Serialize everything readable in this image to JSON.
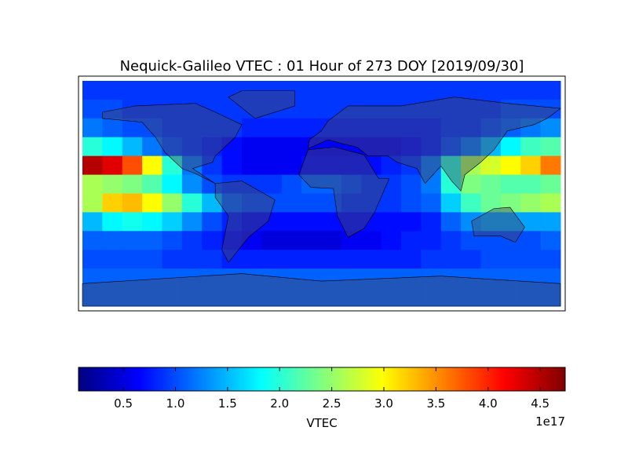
{
  "chart_data": {
    "type": "heatmap",
    "title": "Nequick-Galileo VTEC : 01 Hour of 273 DOY [2019/09/30]",
    "colormap": "jet",
    "clim": [
      0.07,
      4.74
    ],
    "colorbar_label": "VTEC",
    "colorbar_offset_label": "1e17",
    "colorbar_ticks": [
      0.5,
      {
        "value": 1,
        "label": "1.0"
      },
      1.5,
      {
        "value": 2,
        "label": "2.0"
      },
      2.5,
      {
        "value": 3,
        "label": "3.0"
      },
      3.5,
      {
        "value": 4,
        "label": "4.0"
      },
      4.5
    ],
    "z": [
      [
        0.9,
        0.9,
        0.9,
        0.9,
        0.9,
        0.9,
        0.9,
        0.9,
        0.9,
        0.9,
        0.9,
        0.9,
        0.9,
        0.9,
        0.9,
        0.9,
        0.9,
        0.9,
        0.9,
        0.9,
        0.9,
        0.9,
        0.9,
        0.9
      ],
      [
        1.0,
        1.0,
        0.9,
        0.9,
        0.9,
        0.9,
        0.9,
        0.9,
        0.9,
        0.9,
        0.9,
        0.9,
        0.9,
        0.9,
        0.9,
        0.9,
        0.9,
        0.9,
        0.9,
        0.9,
        0.9,
        1.0,
        1.0,
        1.0
      ],
      [
        1.2,
        1.1,
        1.0,
        1.0,
        0.9,
        0.9,
        0.9,
        0.9,
        0.8,
        0.8,
        0.8,
        0.8,
        0.8,
        0.8,
        0.8,
        0.8,
        0.8,
        0.8,
        0.9,
        0.9,
        1.0,
        1.1,
        1.2,
        1.3
      ],
      [
        2.0,
        1.8,
        1.5,
        1.2,
        1.0,
        0.9,
        0.8,
        0.7,
        0.6,
        0.6,
        0.6,
        0.6,
        0.6,
        0.6,
        0.6,
        0.6,
        0.7,
        0.8,
        1.0,
        1.2,
        1.5,
        1.8,
        2.1,
        2.2
      ],
      [
        4.5,
        4.3,
        3.8,
        3.0,
        2.0,
        1.2,
        0.9,
        0.7,
        0.6,
        0.6,
        0.6,
        0.7,
        0.7,
        0.7,
        0.7,
        0.8,
        0.9,
        1.2,
        2.0,
        2.6,
        2.8,
        3.0,
        3.2,
        3.6
      ],
      [
        2.6,
        2.5,
        2.4,
        2.2,
        1.8,
        1.3,
        1.0,
        0.9,
        0.9,
        0.9,
        1.0,
        1.1,
        1.1,
        1.0,
        0.9,
        0.9,
        1.0,
        1.2,
        2.0,
        2.4,
        2.3,
        2.2,
        2.2,
        2.3
      ],
      [
        2.6,
        3.2,
        3.3,
        3.0,
        2.5,
        2.0,
        1.5,
        1.1,
        1.0,
        1.0,
        1.0,
        1.0,
        1.0,
        0.9,
        0.9,
        0.9,
        1.0,
        1.1,
        1.6,
        2.1,
        2.3,
        2.4,
        2.5,
        2.6
      ],
      [
        1.5,
        1.8,
        1.9,
        1.8,
        1.6,
        1.3,
        1.0,
        0.8,
        0.7,
        0.7,
        0.7,
        0.7,
        0.7,
        0.7,
        0.7,
        0.7,
        0.7,
        0.8,
        1.1,
        1.3,
        1.4,
        1.4,
        1.4,
        1.4
      ],
      [
        1.1,
        1.1,
        1.1,
        1.1,
        1.0,
        0.9,
        0.8,
        0.7,
        0.6,
        0.5,
        0.5,
        0.5,
        0.5,
        0.6,
        0.6,
        0.7,
        0.8,
        0.8,
        0.9,
        1.0,
        1.0,
        1.0,
        1.0,
        1.1
      ],
      [
        1.0,
        1.0,
        1.0,
        1.0,
        0.9,
        0.9,
        0.9,
        0.8,
        0.8,
        0.8,
        0.8,
        0.8,
        0.8,
        0.8,
        0.8,
        0.8,
        0.8,
        0.9,
        0.9,
        0.9,
        1.0,
        1.0,
        1.0,
        1.0
      ],
      [
        1.1,
        1.1,
        1.1,
        1.1,
        1.1,
        1.1,
        1.1,
        1.1,
        1.1,
        1.1,
        1.1,
        1.1,
        1.1,
        1.1,
        1.1,
        1.1,
        1.1,
        1.1,
        1.1,
        1.1,
        1.1,
        1.1,
        1.1,
        1.1
      ],
      [
        1.1,
        1.1,
        1.1,
        1.1,
        1.1,
        1.1,
        1.1,
        1.1,
        1.1,
        1.1,
        1.1,
        1.1,
        1.1,
        1.1,
        1.1,
        1.1,
        1.1,
        1.1,
        1.1,
        1.1,
        1.1,
        1.1,
        1.1,
        1.1
      ]
    ]
  }
}
